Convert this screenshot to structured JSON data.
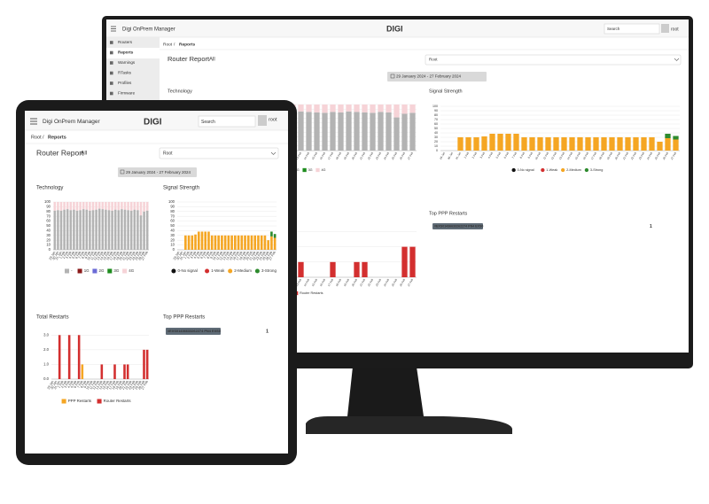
{
  "app": {
    "name": "Digi OnPrem Manager",
    "logo": "DIGI",
    "search_placeholder": "Search",
    "user": "root",
    "sidebar": [
      "Routers",
      "Reports",
      "Warnings",
      "RTasks",
      "Profiles",
      "Firmware"
    ]
  },
  "breadcrumb": {
    "root": "Root",
    "separator": "/",
    "current": "Reports"
  },
  "report": {
    "title": "Router Report",
    "scope": "All",
    "select_value": "Root",
    "date_range": "29 January 2024 - 27 February 2024"
  },
  "charts": {
    "technology": {
      "title": "Technology",
      "legend_marker": "square",
      "ylim": [
        0,
        100
      ],
      "yticks": [
        0,
        10,
        20,
        30,
        40,
        50,
        60,
        70,
        80,
        90,
        100
      ],
      "categories": [
        "29 Jan",
        "30 Jan",
        "31 Jan",
        "1 Feb",
        "2 Feb",
        "3 Feb",
        "4 Feb",
        "5 Feb",
        "6 Feb",
        "7 Feb",
        "8 Feb",
        "9 Feb",
        "10 Feb",
        "11 Feb",
        "12 Feb",
        "13 Feb",
        "14 Feb",
        "15 Feb",
        "16 Feb",
        "17 Feb",
        "18 Feb",
        "19 Feb",
        "20 Feb",
        "21 Feb",
        "22 Feb",
        "23 Feb",
        "24 Feb",
        "25 Feb",
        "26 Feb",
        "27 Feb"
      ],
      "series": [
        {
          "name": "-",
          "color": "#b3b3b3",
          "values": [
            82,
            83,
            82,
            84,
            85,
            83,
            84,
            82,
            83,
            85,
            84,
            82,
            83,
            84,
            86,
            85,
            84,
            83,
            82,
            84,
            83,
            85,
            84,
            83,
            82,
            84,
            83,
            72,
            80,
            82
          ]
        },
        {
          "name": "1G",
          "color": "#8b1a1a",
          "values": [
            0,
            0,
            0,
            0,
            0,
            0,
            0,
            0,
            0,
            0,
            0,
            0,
            0,
            0,
            0,
            0,
            0,
            0,
            0,
            0,
            0,
            0,
            0,
            0,
            0,
            0,
            0,
            0,
            0,
            0
          ]
        },
        {
          "name": "2G",
          "color": "#6b6bd6",
          "values": [
            0,
            0,
            0,
            0,
            0,
            0,
            0,
            0,
            0,
            0,
            0,
            0,
            0,
            0,
            0,
            0,
            0,
            0,
            0,
            0,
            0,
            0,
            0,
            0,
            0,
            0,
            0,
            0,
            0,
            0
          ]
        },
        {
          "name": "3G",
          "color": "#1e8c1e",
          "values": [
            0,
            0,
            0,
            0,
            0,
            0,
            0,
            0,
            0,
            0,
            0,
            0,
            0,
            0,
            0,
            0,
            0,
            0,
            0,
            0,
            0,
            0,
            0,
            0,
            0,
            0,
            0,
            0,
            0,
            0
          ]
        },
        {
          "name": "4G",
          "color": "#f6d3d7",
          "values": [
            18,
            17,
            18,
            16,
            15,
            17,
            16,
            18,
            17,
            15,
            16,
            18,
            17,
            16,
            14,
            15,
            16,
            17,
            18,
            16,
            17,
            15,
            16,
            17,
            18,
            16,
            17,
            28,
            20,
            18
          ]
        }
      ]
    },
    "signal": {
      "title": "Signal Strength",
      "legend_marker": "circle",
      "ylim": [
        0,
        100
      ],
      "yticks": [
        0,
        10,
        20,
        30,
        40,
        50,
        60,
        70,
        80,
        90,
        100
      ],
      "categories": [
        "29 Jan",
        "30 Jan",
        "31 Jan",
        "1 Feb",
        "2 Feb",
        "3 Feb",
        "4 Feb",
        "5 Feb",
        "6 Feb",
        "7 Feb",
        "8 Feb",
        "9 Feb",
        "10 Feb",
        "11 Feb",
        "12 Feb",
        "13 Feb",
        "14 Feb",
        "15 Feb",
        "16 Feb",
        "17 Feb",
        "18 Feb",
        "19 Feb",
        "20 Feb",
        "21 Feb",
        "22 Feb",
        "23 Feb",
        "24 Feb",
        "25 Feb",
        "26 Feb",
        "27 Feb"
      ],
      "series": [
        {
          "name": "0-No signal",
          "color": "#111111",
          "values": [
            0,
            0,
            0,
            0,
            0,
            0,
            0,
            0,
            0,
            0,
            0,
            0,
            0,
            0,
            0,
            0,
            0,
            0,
            0,
            0,
            0,
            0,
            0,
            0,
            0,
            0,
            0,
            0,
            0,
            0
          ]
        },
        {
          "name": "1-Weak",
          "color": "#d32f2f",
          "values": [
            0,
            0,
            0,
            0,
            0,
            0,
            0,
            0,
            0,
            0,
            0,
            0,
            0,
            0,
            0,
            0,
            0,
            0,
            0,
            0,
            0,
            0,
            0,
            0,
            0,
            0,
            0,
            0,
            0,
            0
          ]
        },
        {
          "name": "2-Medium",
          "color": "#f5a623",
          "values": [
            0,
            0,
            30,
            30,
            30,
            32,
            38,
            38,
            38,
            38,
            30,
            30,
            30,
            30,
            30,
            30,
            30,
            30,
            30,
            30,
            30,
            30,
            30,
            30,
            30,
            30,
            30,
            20,
            28,
            25
          ]
        },
        {
          "name": "3-Strong",
          "color": "#2e8b2e",
          "values": [
            0,
            0,
            0,
            0,
            0,
            0,
            0,
            0,
            0,
            0,
            0,
            0,
            0,
            0,
            0,
            0,
            0,
            0,
            0,
            0,
            0,
            0,
            0,
            0,
            0,
            0,
            0,
            0,
            10,
            8
          ]
        }
      ]
    },
    "restarts": {
      "title": "Total Restarts",
      "legend_marker": "square",
      "ylim": [
        0,
        3.2
      ],
      "yticks": [
        {
          "value": 0,
          "label": "0.0"
        },
        {
          "value": 1,
          "label": "1.0"
        },
        {
          "value": 2,
          "label": "2.0"
        },
        {
          "value": 3,
          "label": "3.0"
        }
      ],
      "categories": [
        "29 Jan",
        "30 Jan",
        "31 Jan",
        "1 Feb",
        "2 Feb",
        "3 Feb",
        "4 Feb",
        "5 Feb",
        "6 Feb",
        "7 Feb",
        "8 Feb",
        "9 Feb",
        "10 Feb",
        "11 Feb",
        "12 Feb",
        "13 Feb",
        "14 Feb",
        "15 Feb",
        "16 Feb",
        "17 Feb",
        "18 Feb",
        "19 Feb",
        "20 Feb",
        "21 Feb",
        "22 Feb",
        "23 Feb",
        "24 Feb",
        "25 Feb",
        "26 Feb",
        "27 Feb"
      ],
      "series": [
        {
          "name": "PPP Restarts",
          "color": "#f5a623",
          "values": [
            0,
            0,
            0,
            0,
            0,
            0,
            0,
            0,
            0,
            1,
            0,
            0,
            0,
            0,
            0,
            0,
            0,
            0,
            0,
            0,
            0,
            0,
            0,
            0,
            0,
            0,
            0,
            0,
            0,
            0
          ]
        },
        {
          "name": "Router Restarts",
          "color": "#d32f2f",
          "values": [
            0,
            0,
            3,
            0,
            0,
            3,
            0,
            0,
            3,
            0,
            0,
            0,
            0,
            0,
            0,
            1,
            0,
            0,
            0,
            1,
            0,
            0,
            1,
            1,
            0,
            0,
            0,
            0,
            2,
            2
          ]
        }
      ]
    }
  },
  "top_ppp": {
    "title": "Top PPP Restarts",
    "device": "#EXS01436633262274 PN4 EXS0",
    "count": "1"
  }
}
